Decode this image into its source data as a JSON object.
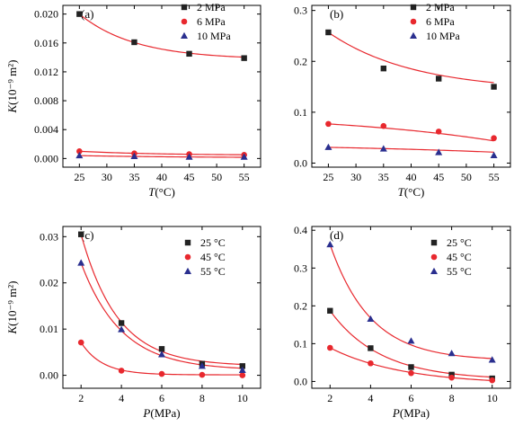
{
  "colors": {
    "series1": "#222222",
    "series2": "#e8282e",
    "series3": "#2a2f8f",
    "curve": "#e8282e"
  },
  "chart_data": [
    {
      "type": "scatter",
      "panel_label": "(a)",
      "xlabel_var": "T",
      "xlabel_unit": "(°C)",
      "ylabel_var": "K",
      "ylabel_unit": "(10⁻⁹ m²)",
      "xlim": [
        22,
        58
      ],
      "ylim": [
        -0.0012,
        0.0212
      ],
      "xticks": [
        "25",
        "30",
        "35",
        "40",
        "45",
        "50",
        "55"
      ],
      "xtick_values": [
        25,
        30,
        35,
        40,
        45,
        50,
        55
      ],
      "yticks": [
        "0.000",
        "0.004",
        "0.008",
        "0.012",
        "0.016",
        "0.020"
      ],
      "ytick_values": [
        0,
        0.004,
        0.008,
        0.012,
        0.016,
        0.02
      ],
      "legend": "top-right",
      "series": [
        {
          "name": "2 MPa",
          "marker": "square",
          "x": [
            25,
            35,
            45,
            55
          ],
          "y": [
            0.02,
            0.0161,
            0.0145,
            0.0139
          ],
          "fit": {
            "a": 0.0137,
            "b": 0.0063,
            "c": 0.0982
          }
        },
        {
          "name": "6 MPa",
          "marker": "circle",
          "x": [
            25,
            35,
            45,
            55
          ],
          "y": [
            0.001,
            0.0007,
            0.0006,
            0.0005
          ],
          "fit": {
            "a": 0.00045,
            "b": 0.00055,
            "c": 0.07
          }
        },
        {
          "name": "10 MPa",
          "marker": "triangle",
          "x": [
            25,
            35,
            45,
            55
          ],
          "y": [
            0.0004,
            0.0003,
            0.0002,
            0.0002
          ],
          "fit": {
            "a": 0.0001,
            "b": 0.0003,
            "c": 0.05
          }
        }
      ]
    },
    {
      "type": "scatter",
      "panel_label": "(b)",
      "xlabel_var": "T",
      "xlabel_unit": "(°C)",
      "ylabel_var": "",
      "ylabel_unit": "",
      "xlim": [
        22,
        58
      ],
      "ylim": [
        -0.008,
        0.31
      ],
      "xticks": [
        "25",
        "30",
        "35",
        "40",
        "45",
        "50",
        "55"
      ],
      "xtick_values": [
        25,
        30,
        35,
        40,
        45,
        50,
        55
      ],
      "yticks": [
        "0.0",
        "0.1",
        "0.2",
        "0.3"
      ],
      "ytick_values": [
        0,
        0.1,
        0.2,
        0.3
      ],
      "legend": "top-right",
      "series": [
        {
          "name": "2 MPa",
          "marker": "square",
          "x": [
            25,
            35,
            45,
            55
          ],
          "y": [
            0.257,
            0.186,
            0.166,
            0.15
          ],
          "fit": {
            "a": 0.1416,
            "b": 0.1154,
            "c": 0.0647
          }
        },
        {
          "name": "6 MPa",
          "marker": "circle",
          "x": [
            25,
            35,
            45,
            55
          ],
          "y": [
            0.077,
            0.073,
            0.062,
            0.049
          ],
          "fit": {
            "a": 0.0986,
            "b": -0.0216,
            "c": -0.0311
          }
        },
        {
          "name": "10 MPa",
          "marker": "triangle",
          "x": [
            25,
            35,
            45,
            55
          ],
          "y": [
            0.031,
            0.028,
            0.021,
            0.015
          ],
          "fit": {
            "a": 0.0404,
            "b": -0.0094,
            "c": -0.0233
          }
        }
      ]
    },
    {
      "type": "scatter",
      "panel_label": "(c)",
      "xlabel_var": "P",
      "xlabel_unit": "(MPa)",
      "ylabel_var": "K",
      "ylabel_unit": "(10⁻⁹ m²)",
      "xlim": [
        1.1,
        10.9
      ],
      "ylim": [
        -0.0028,
        0.0322
      ],
      "xticks": [
        "2",
        "4",
        "6",
        "8",
        "10"
      ],
      "xtick_values": [
        2,
        4,
        6,
        8,
        10
      ],
      "yticks": [
        "0.00",
        "0.01",
        "0.02",
        "0.03"
      ],
      "ytick_values": [
        0,
        0.01,
        0.02,
        0.03
      ],
      "legend": "top-right",
      "series": [
        {
          "name": "25 °C",
          "marker": "square",
          "x": [
            2,
            4,
            6,
            8,
            10
          ],
          "y": [
            0.0305,
            0.0113,
            0.0057,
            0.0025,
            0.002
          ],
          "fit": {
            "a": 0.002,
            "b": 0.0285,
            "c": 0.55
          }
        },
        {
          "name": "45 °C",
          "marker": "circle",
          "x": [
            2,
            4,
            6,
            8,
            10
          ],
          "y": [
            0.0071,
            0.001,
            0.0003,
            0.0001,
            0.0
          ],
          "fit": {
            "a": 0.0001,
            "b": 0.007,
            "c": 0.95
          }
        },
        {
          "name": "55 °C",
          "marker": "triangle",
          "x": [
            2,
            4,
            6,
            8,
            10
          ],
          "y": [
            0.0243,
            0.0099,
            0.0045,
            0.002,
            0.0011
          ],
          "fit": {
            "a": 0.0011,
            "b": 0.0232,
            "c": 0.5
          }
        }
      ]
    },
    {
      "type": "scatter",
      "panel_label": "(d)",
      "xlabel_var": "P",
      "xlabel_unit": "(MPa)",
      "ylabel_var": "",
      "ylabel_unit": "",
      "xlim": [
        1.1,
        10.9
      ],
      "ylim": [
        -0.018,
        0.41
      ],
      "xticks": [
        "2",
        "4",
        "6",
        "8",
        "10"
      ],
      "xtick_values": [
        2,
        4,
        6,
        8,
        10
      ],
      "yticks": [
        "0.0",
        "0.1",
        "0.2",
        "0.3",
        "0.4"
      ],
      "ytick_values": [
        0,
        0.1,
        0.2,
        0.3,
        0.4
      ],
      "legend": "top-right",
      "series": [
        {
          "name": "25 °C",
          "marker": "square",
          "x": [
            2,
            4,
            6,
            8,
            10
          ],
          "y": [
            0.187,
            0.088,
            0.038,
            0.018,
            0.008
          ],
          "fit": {
            "a": 0.004,
            "b": 0.183,
            "c": 0.4
          }
        },
        {
          "name": "45 °C",
          "marker": "circle",
          "x": [
            2,
            4,
            6,
            8,
            10
          ],
          "y": [
            0.089,
            0.048,
            0.022,
            0.01,
            0.003
          ],
          "fit": {
            "a": -0.008,
            "b": 0.097,
            "c": 0.28
          }
        },
        {
          "name": "55 °C",
          "marker": "triangle",
          "x": [
            2,
            4,
            6,
            8,
            10
          ],
          "y": [
            0.362,
            0.165,
            0.107,
            0.074,
            0.057
          ],
          "fit": {
            "a": 0.055,
            "b": 0.307,
            "c": 0.5
          }
        }
      ]
    }
  ]
}
